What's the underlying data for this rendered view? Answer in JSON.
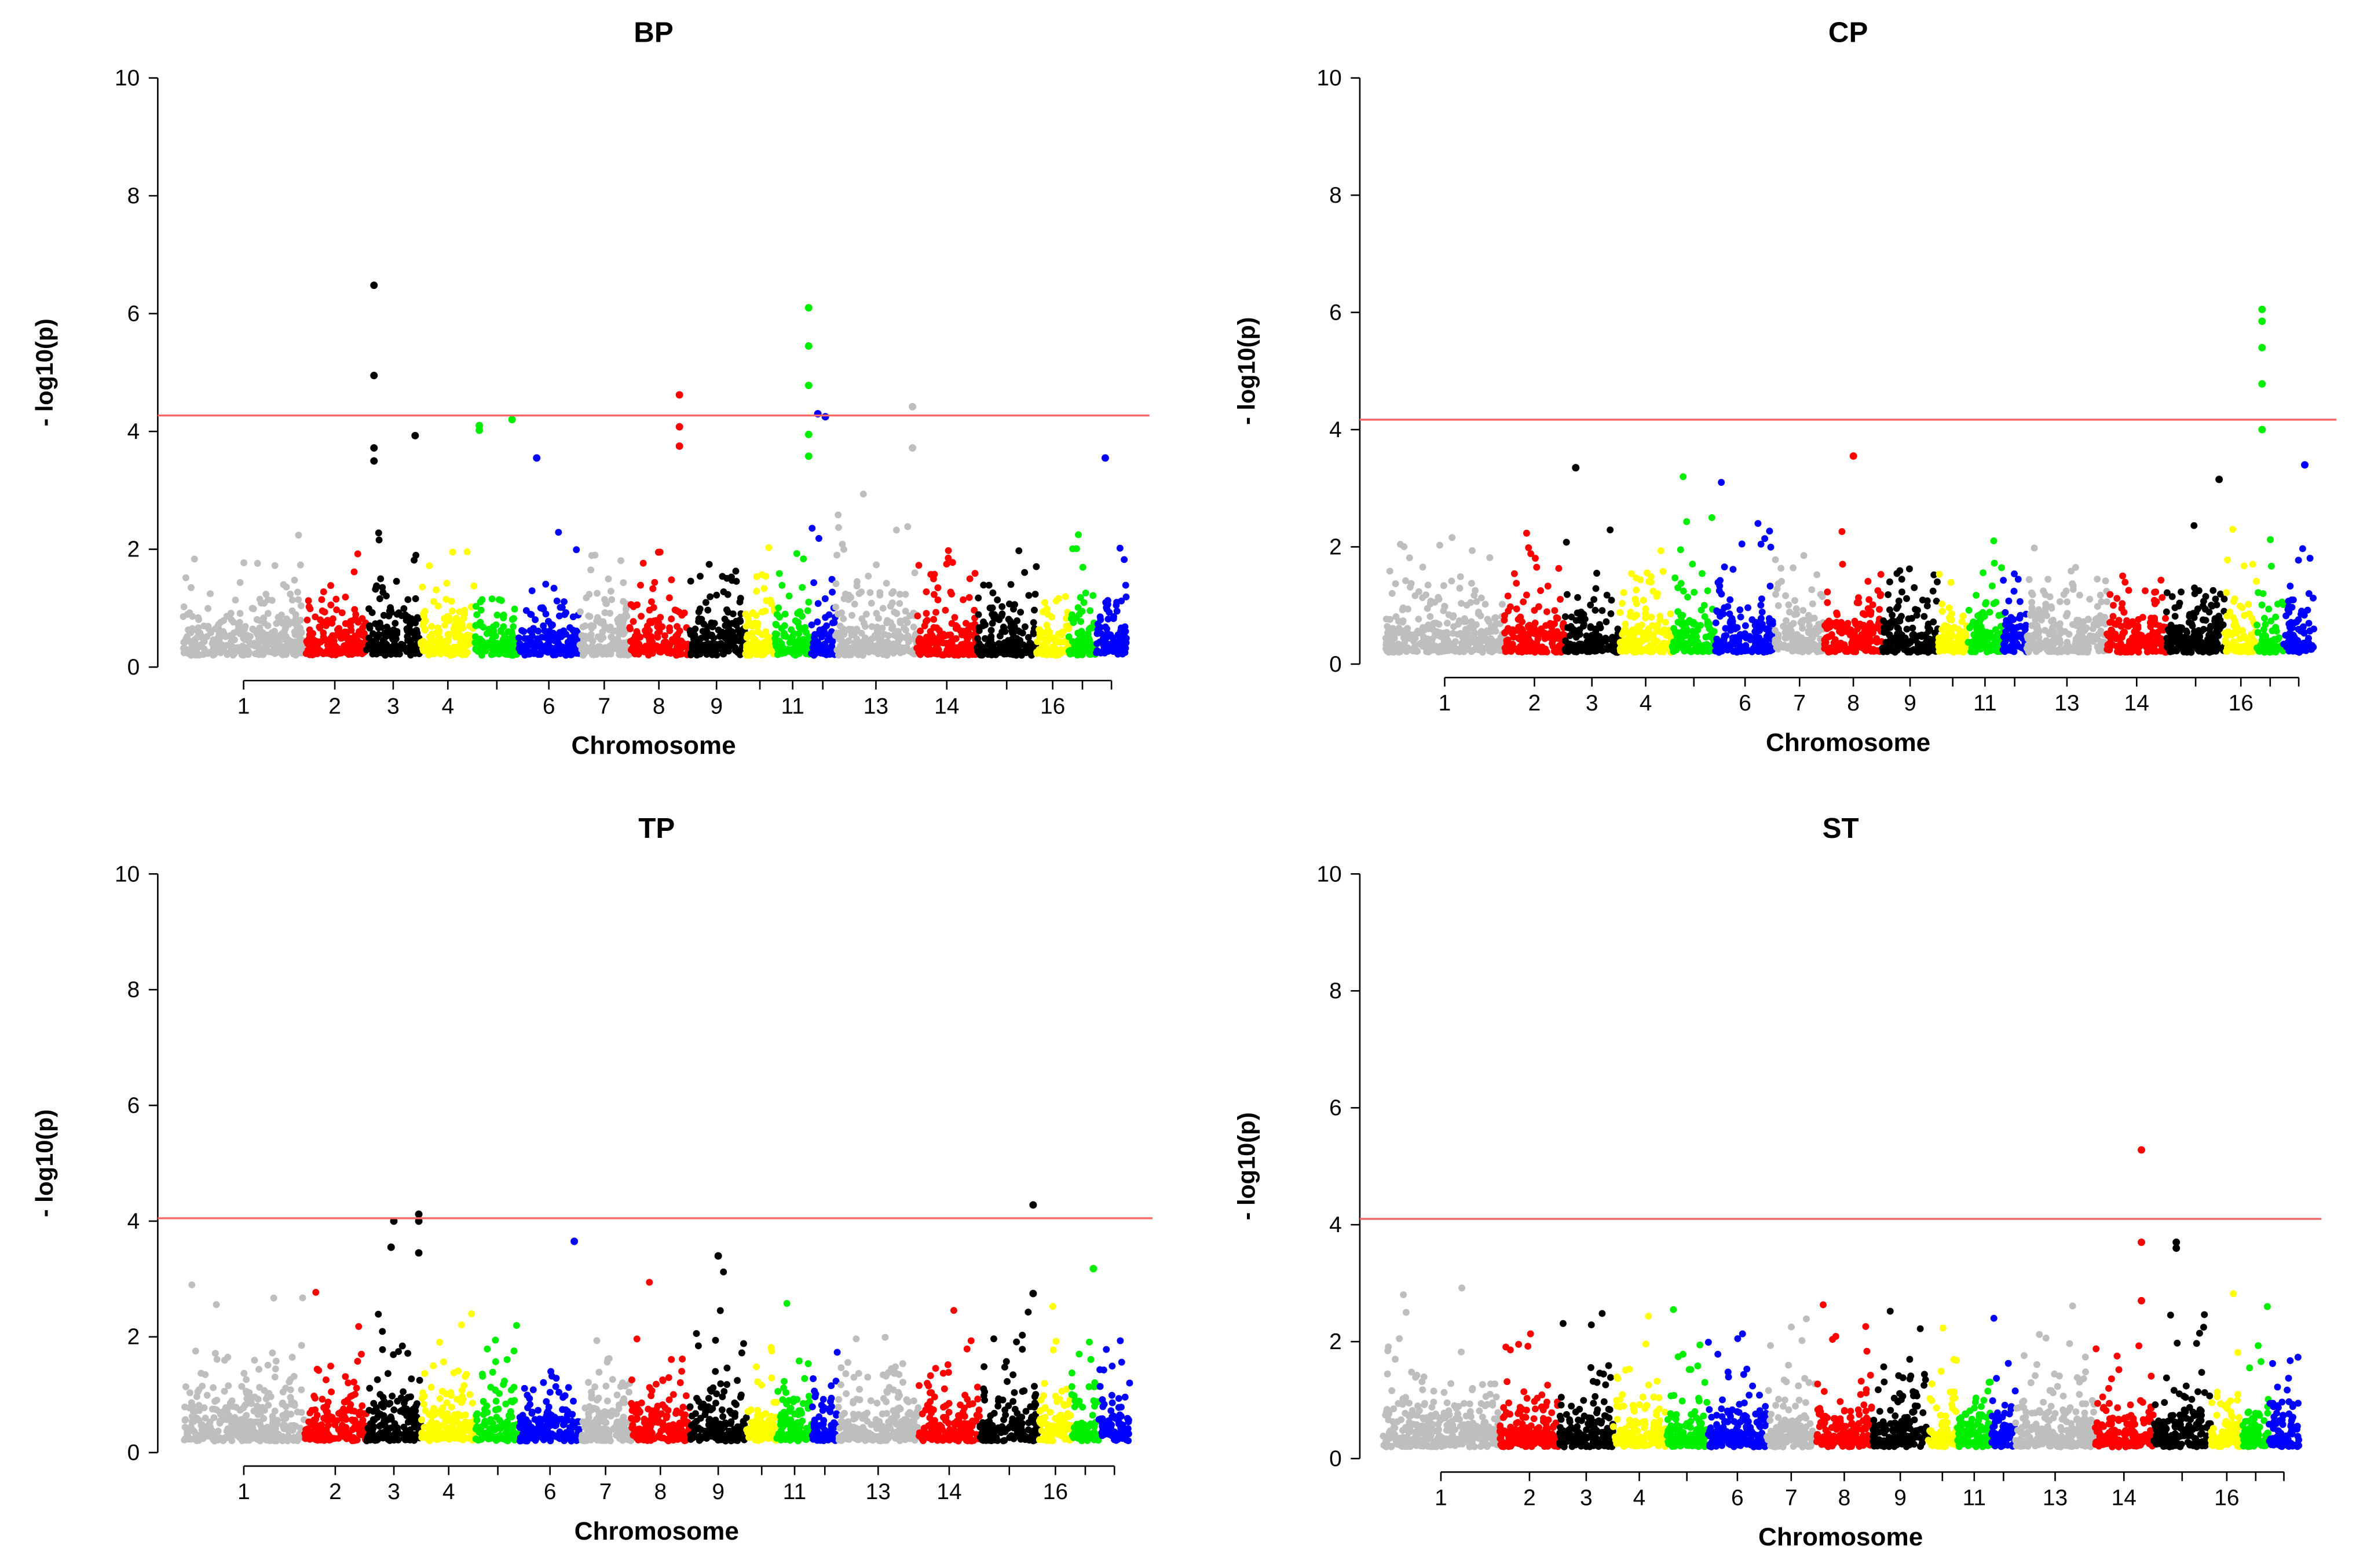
{
  "chart_data": [
    {
      "type": "scatter",
      "subtype": "manhattan",
      "title": "BP",
      "xlabel": "Chromosome",
      "ylabel": "- log10(p)",
      "ylim": [
        0,
        10
      ],
      "yticks": [
        0,
        2,
        4,
        6,
        8,
        10
      ],
      "threshold": 4.27,
      "threshold_color": "#ff6666",
      "bg_max": [
        2.4,
        2.9,
        2.8,
        2.3,
        3.2,
        2.8,
        2.2,
        3.0,
        3.0,
        2.4,
        2.9,
        3.2,
        3.1,
        2.0,
        2.7,
        3.1,
        3.4,
        3.0
      ],
      "peaks": [
        [
          3,
          0.15,
          6.48
        ],
        [
          3,
          0.15,
          4.95
        ],
        [
          3,
          0.15,
          3.72
        ],
        [
          3,
          0.15,
          3.5
        ],
        [
          3,
          0.9,
          3.93
        ],
        [
          5,
          0.1,
          4.1
        ],
        [
          5,
          0.1,
          4.02
        ],
        [
          5,
          0.85,
          4.2
        ],
        [
          6,
          0.3,
          3.55
        ],
        [
          8,
          0.85,
          4.62
        ],
        [
          8,
          0.85,
          4.08
        ],
        [
          8,
          0.85,
          3.75
        ],
        [
          11,
          0.95,
          6.1
        ],
        [
          11,
          0.95,
          5.45
        ],
        [
          11,
          0.95,
          4.78
        ],
        [
          11,
          0.95,
          3.95
        ],
        [
          11,
          0.95,
          3.58
        ],
        [
          12,
          0.3,
          4.3
        ],
        [
          12,
          0.6,
          4.25
        ],
        [
          13,
          0.95,
          4.42
        ],
        [
          13,
          0.95,
          3.72
        ],
        [
          18,
          0.3,
          3.55
        ]
      ]
    },
    {
      "type": "scatter",
      "subtype": "manhattan",
      "title": "CP",
      "xlabel": "Chromosome",
      "ylabel": "- log10(p)",
      "ylim": [
        0,
        10
      ],
      "yticks": [
        0,
        2,
        4,
        6,
        8,
        10
      ],
      "threshold": 4.17,
      "threshold_color": "#ff6666",
      "bg_max": [
        3.3,
        2.5,
        3.3,
        2.4,
        3.2,
        3.1,
        2.6,
        3.5,
        2.7,
        2.4,
        2.9,
        2.3,
        2.3,
        3.1,
        3.1,
        2.3,
        3.1,
        3.4
      ],
      "peaks": [
        [
          3,
          0.2,
          3.35
        ],
        [
          8,
          0.5,
          3.55
        ],
        [
          17,
          0.2,
          6.05
        ],
        [
          17,
          0.2,
          5.85
        ],
        [
          17,
          0.2,
          5.4
        ],
        [
          17,
          0.2,
          4.78
        ],
        [
          17,
          0.2,
          4.0
        ],
        [
          15,
          0.9,
          3.15
        ],
        [
          18,
          0.7,
          3.4
        ]
      ]
    },
    {
      "type": "scatter",
      "subtype": "manhattan",
      "title": "TP",
      "xlabel": "Chromosome",
      "ylabel": "- log10(p)",
      "ylim": [
        0,
        10
      ],
      "yticks": [
        0,
        2,
        4,
        6,
        8,
        10
      ],
      "threshold": 4.05,
      "threshold_color": "#ff6666",
      "bg_max": [
        3.6,
        2.9,
        3.0,
        2.4,
        2.5,
        2.8,
        2.3,
        3.1,
        3.4,
        3.5,
        3.2,
        2.6,
        2.2,
        2.5,
        2.7,
        3.3,
        3.2,
        2.0
      ],
      "peaks": [
        [
          3,
          0.45,
          3.55
        ],
        [
          3,
          0.5,
          4.0
        ],
        [
          3,
          0.95,
          4.12
        ],
        [
          3,
          0.95,
          4.0
        ],
        [
          3,
          0.95,
          3.45
        ],
        [
          6,
          0.9,
          3.65
        ],
        [
          9,
          0.5,
          3.4
        ],
        [
          15,
          0.9,
          4.28
        ],
        [
          15,
          0.9,
          2.75
        ],
        [
          17,
          0.8,
          3.18
        ]
      ]
    },
    {
      "type": "scatter",
      "subtype": "manhattan",
      "title": "ST",
      "xlabel": "Chromosome",
      "ylabel": "- log10(p)",
      "ylim": [
        0,
        10
      ],
      "yticks": [
        0,
        2,
        4,
        6,
        8,
        10
      ],
      "threshold": 4.1,
      "threshold_color": "#ff6666",
      "bg_max": [
        3.5,
        2.7,
        2.7,
        3.0,
        2.9,
        3.2,
        3.0,
        3.3,
        3.0,
        2.5,
        2.6,
        2.4,
        3.1,
        2.1,
        3.7,
        2.9,
        2.6,
        2.8
      ],
      "peaks": [
        [
          14,
          0.8,
          5.28
        ],
        [
          14,
          0.8,
          3.7
        ],
        [
          14,
          0.8,
          2.7
        ],
        [
          15,
          0.4,
          3.7
        ],
        [
          15,
          0.4,
          3.6
        ]
      ]
    }
  ],
  "chromosomes": {
    "ids": [
      1,
      2,
      3,
      4,
      5,
      6,
      7,
      8,
      9,
      10,
      11,
      12,
      13,
      14,
      15,
      16,
      17,
      18
    ],
    "relative_lengths": [
      160,
      82,
      73,
      72,
      58,
      80,
      67,
      78,
      75,
      40,
      47,
      33,
      108,
      80,
      79,
      43,
      36,
      41
    ],
    "labels_shown": [
      "1",
      "2",
      "3",
      "4",
      "",
      "6",
      "7",
      "8",
      "9",
      "",
      "11",
      "",
      "13",
      "14",
      "",
      "16",
      "",
      ""
    ],
    "colors": [
      "#bebebe",
      "#ff0000",
      "#000000",
      "#ffff00",
      "#00ee00",
      "#0000ff"
    ]
  }
}
